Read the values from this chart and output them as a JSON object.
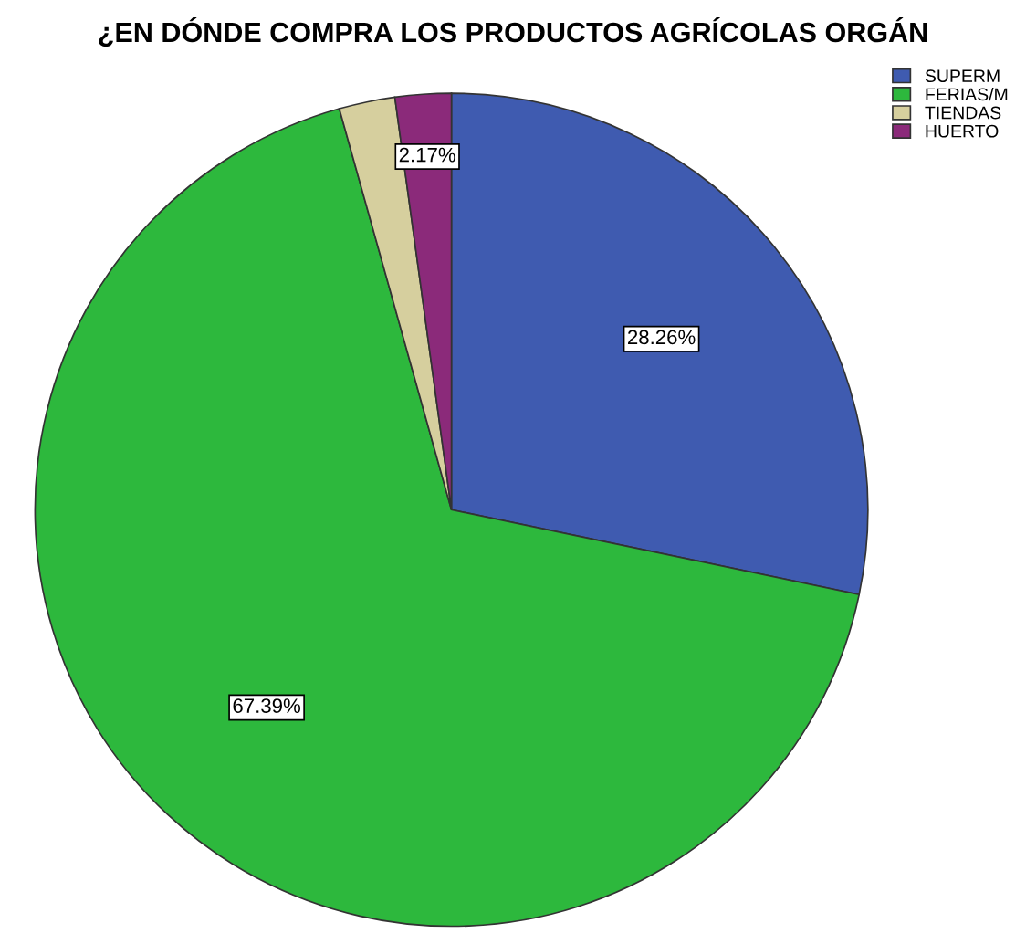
{
  "chart_data": {
    "type": "pie",
    "title": "¿EN DÓNDE COMPRA LOS PRODUCTOS AGRÍCOLAS ORGÁN",
    "categories": [
      "SUPERM",
      "FERIAS/M",
      "TIENDAS",
      "HUERTO"
    ],
    "values": [
      28.26,
      67.39,
      2.17,
      2.17
    ],
    "colors": [
      "#3f5bb0",
      "#2db83d",
      "#d6cf9e",
      "#8b2a7a"
    ],
    "value_labels": [
      "28.26%",
      "67.39%",
      null,
      "2.17%"
    ],
    "legend": "top right"
  }
}
